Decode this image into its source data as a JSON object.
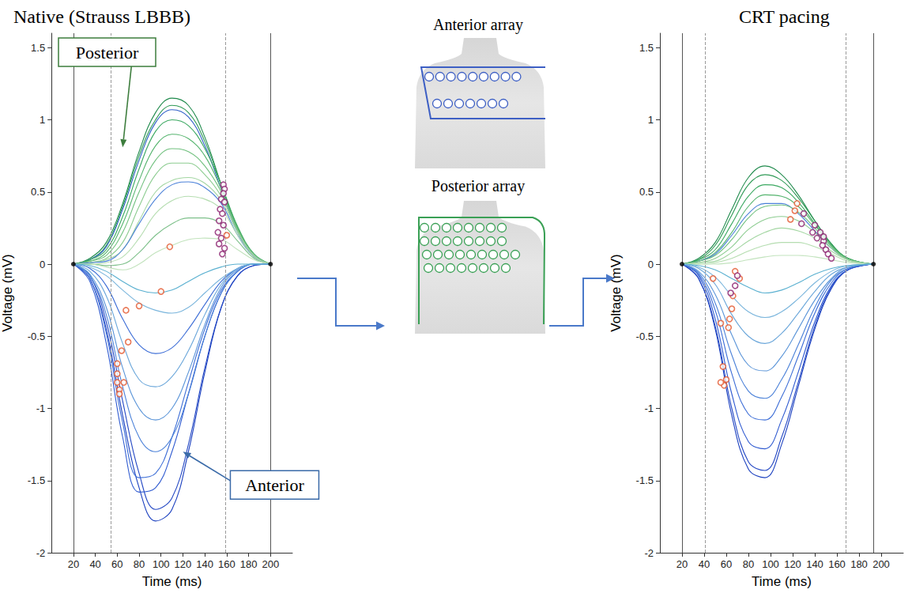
{
  "chart_data": [
    {
      "type": "line",
      "title": "Native (Strauss LBBB)",
      "xlabel": "Time (ms)",
      "ylabel": "Voltage (mV)",
      "xlim": [
        0,
        220
      ],
      "xticks": [
        20,
        40,
        60,
        80,
        100,
        120,
        140,
        160,
        180,
        200
      ],
      "ylim": [
        -2,
        1.6
      ],
      "yticks": [
        -2,
        -1.5,
        -1,
        -0.5,
        0,
        0.5,
        1,
        1.5
      ],
      "grid": false,
      "vlines": [
        {
          "x": 20,
          "line_style": "solid"
        },
        {
          "x": 200,
          "line_style": "solid"
        },
        {
          "x": 54,
          "line_style": "dashed"
        },
        {
          "x": 159,
          "line_style": "dashed"
        }
      ],
      "x": [
        20,
        35,
        50,
        65,
        80,
        95,
        110,
        125,
        140,
        155,
        170,
        185,
        200
      ],
      "series": [
        {
          "color": "#1f8a4c",
          "values": [
            0,
            0.04,
            0.15,
            0.42,
            0.78,
            1.05,
            1.15,
            1.1,
            0.88,
            0.55,
            0.24,
            0.06,
            0
          ]
        },
        {
          "color": "#2e9a55",
          "values": [
            0,
            0.03,
            0.13,
            0.4,
            0.75,
            1.0,
            1.1,
            1.05,
            0.85,
            0.55,
            0.25,
            0.06,
            0
          ]
        },
        {
          "color": "#2f5fc8",
          "values": [
            0,
            0.03,
            0.12,
            0.38,
            0.72,
            0.98,
            1.07,
            1.02,
            0.82,
            0.52,
            0.22,
            0.05,
            0
          ]
        },
        {
          "color": "#3aa860",
          "values": [
            0,
            0.03,
            0.1,
            0.33,
            0.66,
            0.92,
            1.0,
            0.96,
            0.8,
            0.55,
            0.26,
            0.07,
            0
          ]
        },
        {
          "color": "#55b46e",
          "values": [
            0,
            0.02,
            0.08,
            0.28,
            0.58,
            0.82,
            0.9,
            0.87,
            0.75,
            0.52,
            0.25,
            0.06,
            0
          ]
        },
        {
          "color": "#70c07e",
          "values": [
            0,
            0.02,
            0.06,
            0.22,
            0.5,
            0.72,
            0.8,
            0.78,
            0.68,
            0.5,
            0.24,
            0.06,
            0
          ]
        },
        {
          "color": "#8ccc90",
          "values": [
            0,
            0.01,
            0.04,
            0.15,
            0.4,
            0.62,
            0.7,
            0.7,
            0.62,
            0.47,
            0.23,
            0.06,
            0
          ]
        },
        {
          "color": "#a3d6a2",
          "values": [
            0,
            0.01,
            0.03,
            0.1,
            0.3,
            0.5,
            0.58,
            0.6,
            0.56,
            0.44,
            0.22,
            0.06,
            0
          ]
        },
        {
          "color": "#4a80d8",
          "values": [
            0,
            0.01,
            0.02,
            0.1,
            0.28,
            0.45,
            0.55,
            0.57,
            0.53,
            0.42,
            0.2,
            0.05,
            0
          ]
        },
        {
          "color": "#b5ddb0",
          "values": [
            0,
            0,
            0.01,
            0.05,
            0.18,
            0.35,
            0.44,
            0.47,
            0.45,
            0.38,
            0.2,
            0.05,
            0
          ]
        },
        {
          "color": "#7dc08a",
          "values": [
            0,
            0,
            -0.01,
            0.0,
            0.08,
            0.2,
            0.28,
            0.32,
            0.32,
            0.28,
            0.16,
            0.04,
            0
          ]
        },
        {
          "color": "#c2e3bd",
          "values": [
            0,
            0,
            -0.02,
            -0.04,
            0.0,
            0.08,
            0.13,
            0.17,
            0.18,
            0.17,
            0.1,
            0.03,
            0
          ]
        },
        {
          "color": "#1a3fbf",
          "values": [
            0,
            -0.1,
            -0.45,
            -1.05,
            -1.55,
            -1.78,
            -1.7,
            -1.3,
            -0.75,
            -0.3,
            -0.08,
            -0.01,
            0
          ]
        },
        {
          "color": "#2448c4",
          "values": [
            0,
            -0.08,
            -0.4,
            -0.95,
            -1.45,
            -1.7,
            -1.62,
            -1.25,
            -0.72,
            -0.3,
            -0.08,
            -0.01,
            0
          ]
        },
        {
          "color": "#2f5ad0",
          "values": [
            0,
            -0.12,
            -0.55,
            -1.2,
            -1.58,
            -1.55,
            -1.3,
            -0.9,
            -0.5,
            -0.2,
            -0.05,
            0,
            0
          ]
        },
        {
          "color": "#3b6cd6",
          "values": [
            0,
            -0.1,
            -0.48,
            -1.1,
            -1.48,
            -1.45,
            -1.2,
            -0.82,
            -0.45,
            -0.18,
            -0.05,
            0,
            0
          ]
        },
        {
          "color": "#4a80d8",
          "values": [
            0,
            -0.08,
            -0.35,
            -0.85,
            -1.2,
            -1.3,
            -1.2,
            -0.9,
            -0.5,
            -0.2,
            -0.05,
            0,
            0
          ]
        },
        {
          "color": "#5a94d8",
          "values": [
            0,
            -0.07,
            -0.3,
            -0.72,
            -1.0,
            -1.08,
            -1.0,
            -0.75,
            -0.42,
            -0.16,
            -0.04,
            0,
            0
          ]
        },
        {
          "color": "#6aa6da",
          "values": [
            0,
            -0.05,
            -0.22,
            -0.55,
            -0.8,
            -0.85,
            -0.78,
            -0.6,
            -0.35,
            -0.14,
            -0.03,
            0,
            0
          ]
        },
        {
          "color": "#3b6cd6",
          "values": [
            0,
            -0.03,
            -0.15,
            -0.38,
            -0.56,
            -0.62,
            -0.58,
            -0.45,
            -0.28,
            -0.12,
            -0.03,
            0,
            0
          ]
        },
        {
          "color": "#7ab5dc",
          "values": [
            0,
            -0.02,
            -0.08,
            -0.18,
            -0.27,
            -0.32,
            -0.34,
            -0.3,
            -0.2,
            -0.1,
            -0.03,
            0,
            0
          ]
        },
        {
          "color": "#5ab0d0",
          "values": [
            0,
            -0.01,
            -0.05,
            -0.12,
            -0.18,
            -0.2,
            -0.18,
            -0.12,
            -0.06,
            -0.02,
            0,
            0,
            0
          ]
        },
        {
          "type": "scatter",
          "marker": "circle",
          "color": "#e4572e",
          "values": [
            [
              108,
              0.12
            ],
            [
              100,
              -0.19
            ],
            [
              80,
              -0.29
            ],
            [
              68,
              -0.32
            ],
            [
              70,
              -0.54
            ],
            [
              64,
              -0.6
            ],
            [
              60,
              -0.69
            ],
            [
              60,
              -0.76
            ],
            [
              60,
              -0.82
            ],
            [
              62,
              -0.87
            ],
            [
              62,
              -0.9
            ],
            [
              66,
              -0.82
            ],
            [
              160,
              0.2
            ]
          ]
        },
        {
          "type": "scatter",
          "marker": "circle",
          "color": "#8b1f6e",
          "values": [
            [
              157,
              0.55
            ],
            [
              158,
              0.52
            ],
            [
              157,
              0.49
            ],
            [
              155,
              0.45
            ],
            [
              158,
              0.43
            ],
            [
              154,
              0.38
            ],
            [
              156,
              0.35
            ],
            [
              153,
              0.3
            ],
            [
              157,
              0.27
            ],
            [
              152,
              0.22
            ],
            [
              155,
              0.18
            ],
            [
              153,
              0.14
            ],
            [
              158,
              0.11
            ],
            [
              156,
              0.07
            ]
          ]
        },
        {
          "type": "scatter",
          "marker": "dot",
          "color": "#000000",
          "values": [
            [
              20,
              0
            ],
            [
              200,
              0
            ]
          ]
        }
      ],
      "annotations": [
        {
          "text": "Posterior",
          "x": 65,
          "y": 0.81,
          "color": "#3d7d3d"
        },
        {
          "text": "Anterior",
          "x": 120,
          "y": -1.3,
          "color": "#3a6aa8"
        }
      ]
    },
    {
      "type": "line",
      "title": "CRT pacing",
      "xlabel": "Time (ms)",
      "ylabel": "Voltage (mV)",
      "xlim": [
        0,
        220
      ],
      "xticks": [
        20,
        40,
        60,
        80,
        100,
        120,
        140,
        160,
        180,
        200
      ],
      "ylim": [
        -2,
        1.6
      ],
      "yticks": [
        -2,
        -1.5,
        -1,
        -0.5,
        0,
        0.5,
        1,
        1.5
      ],
      "grid": false,
      "vlines": [
        {
          "x": 20,
          "line_style": "solid"
        },
        {
          "x": 193,
          "line_style": "solid"
        },
        {
          "x": 41,
          "line_style": "dashed"
        },
        {
          "x": 168,
          "line_style": "dashed"
        }
      ],
      "x": [
        20,
        35,
        50,
        65,
        80,
        95,
        110,
        125,
        140,
        155,
        170,
        193
      ],
      "series": [
        {
          "color": "#1f8a4c",
          "values": [
            0,
            0.04,
            0.15,
            0.38,
            0.6,
            0.68,
            0.62,
            0.48,
            0.3,
            0.14,
            0.04,
            0
          ]
        },
        {
          "color": "#2e9a55",
          "values": [
            0,
            0.03,
            0.13,
            0.34,
            0.55,
            0.62,
            0.58,
            0.46,
            0.3,
            0.14,
            0.04,
            0
          ]
        },
        {
          "color": "#3aa860",
          "values": [
            0,
            0.03,
            0.1,
            0.28,
            0.47,
            0.55,
            0.53,
            0.43,
            0.28,
            0.13,
            0.04,
            0
          ]
        },
        {
          "color": "#55b46e",
          "values": [
            0,
            0.02,
            0.08,
            0.22,
            0.4,
            0.48,
            0.47,
            0.4,
            0.27,
            0.13,
            0.04,
            0
          ]
        },
        {
          "color": "#4a80d8",
          "values": [
            0,
            0.02,
            0.07,
            0.2,
            0.35,
            0.42,
            0.42,
            0.35,
            0.23,
            0.11,
            0.03,
            0
          ]
        },
        {
          "color": "#70c07e",
          "values": [
            0,
            0.02,
            0.06,
            0.17,
            0.32,
            0.4,
            0.41,
            0.36,
            0.25,
            0.12,
            0.03,
            0
          ]
        },
        {
          "color": "#8ccc90",
          "values": [
            0,
            0.01,
            0.04,
            0.12,
            0.24,
            0.31,
            0.33,
            0.3,
            0.22,
            0.11,
            0.03,
            0
          ]
        },
        {
          "color": "#a3d6a2",
          "values": [
            0,
            0.01,
            0.02,
            0.08,
            0.16,
            0.22,
            0.25,
            0.23,
            0.18,
            0.09,
            0.03,
            0
          ]
        },
        {
          "color": "#b5ddb0",
          "values": [
            0,
            0,
            0.01,
            0.04,
            0.09,
            0.13,
            0.15,
            0.15,
            0.12,
            0.07,
            0.02,
            0
          ]
        },
        {
          "color": "#c2e3bd",
          "values": [
            0,
            0,
            0,
            0.01,
            0.03,
            0.05,
            0.06,
            0.06,
            0.05,
            0.03,
            0.01,
            0
          ]
        },
        {
          "color": "#1a3fbf",
          "values": [
            0,
            -0.1,
            -0.45,
            -1.05,
            -1.42,
            -1.48,
            -1.25,
            -0.85,
            -0.45,
            -0.17,
            -0.04,
            0
          ]
        },
        {
          "color": "#2448c4",
          "values": [
            0,
            -0.1,
            -0.43,
            -1.0,
            -1.37,
            -1.43,
            -1.2,
            -0.82,
            -0.43,
            -0.16,
            -0.04,
            0
          ]
        },
        {
          "color": "#2f5ad0",
          "values": [
            0,
            -0.08,
            -0.38,
            -0.9,
            -1.23,
            -1.28,
            -1.08,
            -0.75,
            -0.4,
            -0.15,
            -0.04,
            0
          ]
        },
        {
          "color": "#3b6cd6",
          "values": [
            0,
            -0.07,
            -0.32,
            -0.76,
            -1.04,
            -1.08,
            -0.92,
            -0.64,
            -0.34,
            -0.13,
            -0.03,
            0
          ]
        },
        {
          "color": "#4a80d8",
          "values": [
            0,
            -0.06,
            -0.27,
            -0.63,
            -0.88,
            -0.93,
            -0.8,
            -0.56,
            -0.3,
            -0.11,
            -0.03,
            0
          ]
        },
        {
          "color": "#5a94d8",
          "values": [
            0,
            -0.05,
            -0.21,
            -0.49,
            -0.7,
            -0.74,
            -0.64,
            -0.45,
            -0.25,
            -0.1,
            -0.02,
            0
          ]
        },
        {
          "color": "#6aa6da",
          "values": [
            0,
            -0.03,
            -0.14,
            -0.35,
            -0.5,
            -0.55,
            -0.48,
            -0.34,
            -0.19,
            -0.07,
            -0.02,
            0
          ]
        },
        {
          "color": "#7ab5dc",
          "values": [
            0,
            -0.02,
            -0.09,
            -0.22,
            -0.33,
            -0.37,
            -0.33,
            -0.24,
            -0.13,
            -0.05,
            -0.01,
            0
          ]
        },
        {
          "color": "#5ab0d0",
          "values": [
            0,
            -0.01,
            -0.04,
            -0.1,
            -0.16,
            -0.2,
            -0.18,
            -0.13,
            -0.07,
            -0.03,
            -0.01,
            0
          ]
        },
        {
          "type": "scatter",
          "marker": "circle",
          "color": "#e4572e",
          "values": [
            [
              48,
              -0.1
            ],
            [
              55,
              -0.41
            ],
            [
              62,
              -0.44
            ],
            [
              63,
              -0.38
            ],
            [
              65,
              -0.31
            ],
            [
              57,
              -0.71
            ],
            [
              58,
              -0.84
            ],
            [
              60,
              -0.8
            ],
            [
              55,
              -0.82
            ],
            [
              68,
              -0.05
            ],
            [
              72,
              -0.1
            ],
            [
              66,
              -0.22
            ],
            [
              118,
              0.31
            ],
            [
              122,
              0.37
            ],
            [
              124,
              0.42
            ]
          ]
        },
        {
          "type": "scatter",
          "marker": "circle",
          "color": "#8b1f6e",
          "values": [
            [
              130,
              0.35
            ],
            [
              128,
              0.28
            ],
            [
              140,
              0.27
            ],
            [
              138,
              0.22
            ],
            [
              145,
              0.22
            ],
            [
              142,
              0.18
            ],
            [
              148,
              0.16
            ],
            [
              147,
              0.13
            ],
            [
              150,
              0.1
            ],
            [
              152,
              0.07
            ],
            [
              155,
              0.04
            ],
            [
              148,
              0.19
            ],
            [
              70,
              -0.08
            ],
            [
              68,
              -0.15
            ],
            [
              64,
              -0.2
            ]
          ]
        },
        {
          "type": "scatter",
          "marker": "dot",
          "color": "#000000",
          "values": [
            [
              20,
              0
            ],
            [
              193,
              0
            ]
          ]
        }
      ]
    }
  ],
  "diagram": {
    "anterior_label": "Anterior array",
    "posterior_label": "Posterior array"
  }
}
